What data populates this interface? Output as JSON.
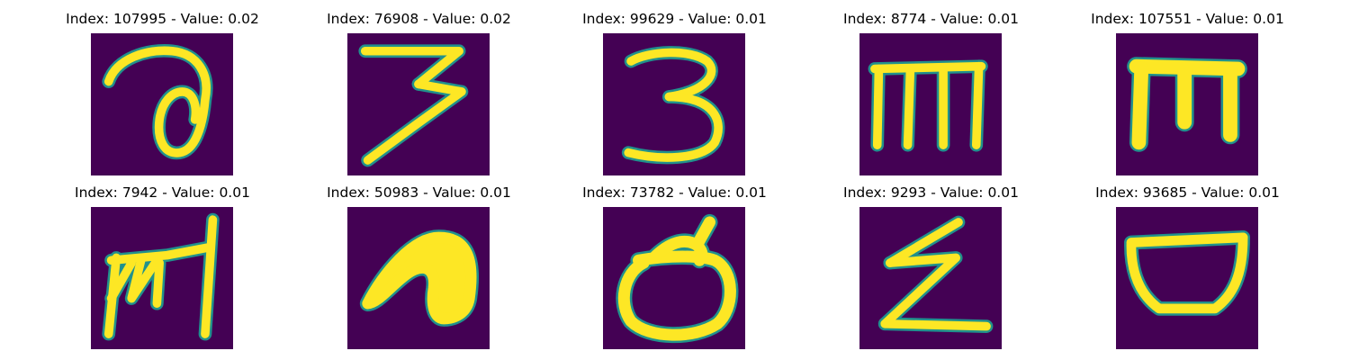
{
  "figure": {
    "colors": {
      "background": "#440154",
      "edge": "#21918c",
      "fill": "#fde725"
    },
    "panels": [
      {
        "title": "Index: 107995 - Value: 0.02",
        "index": 107995,
        "value": 0.02,
        "glyph": "curl-a"
      },
      {
        "title": "Index: 76908 - Value: 0.02",
        "index": 76908,
        "value": 0.02,
        "glyph": "three-slant"
      },
      {
        "title": "Index: 99629 - Value: 0.01",
        "index": 99629,
        "value": 0.01,
        "glyph": "three-round"
      },
      {
        "title": "Index: 8774 - Value: 0.01",
        "index": 8774,
        "value": 0.01,
        "glyph": "m-thin"
      },
      {
        "title": "Index: 107551 - Value: 0.01",
        "index": 107551,
        "value": 0.01,
        "glyph": "m-bold"
      },
      {
        "title": "Index: 7942 - Value: 0.01",
        "index": 7942,
        "value": 0.01,
        "glyph": "scribble-bar"
      },
      {
        "title": "Index: 50983 - Value: 0.01",
        "index": 50983,
        "value": 0.01,
        "glyph": "n-blob"
      },
      {
        "title": "Index: 73782 - Value: 0.01",
        "index": 73782,
        "value": 0.01,
        "glyph": "loop-d"
      },
      {
        "title": "Index: 9293 - Value: 0.01",
        "index": 9293,
        "value": 0.01,
        "glyph": "z-zigzag"
      },
      {
        "title": "Index: 93685 - Value: 0.01",
        "index": 93685,
        "value": 0.01,
        "glyph": "bowl"
      }
    ]
  }
}
